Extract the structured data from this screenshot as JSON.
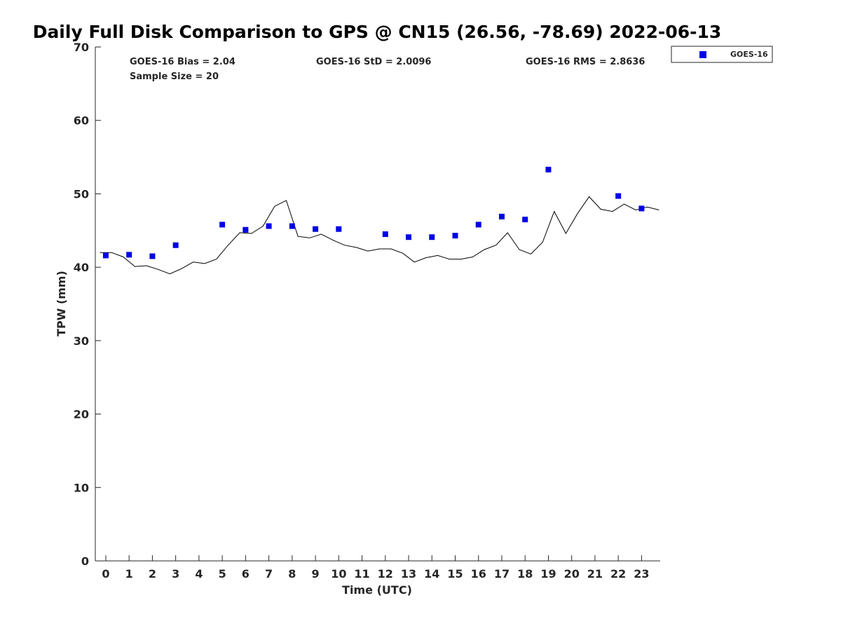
{
  "chart_data": {
    "type": "scatter",
    "title": "Daily Full Disk Comparison to GPS @ CN15 (26.56, -78.69) 2022-06-13",
    "xlabel": "Time (UTC)",
    "ylabel": "TPW (mm)",
    "xlim": [
      -0.45,
      23.8
    ],
    "ylim": [
      0,
      70
    ],
    "x_ticks": [
      0,
      1,
      2,
      3,
      4,
      5,
      6,
      7,
      8,
      9,
      10,
      11,
      12,
      13,
      14,
      15,
      16,
      17,
      18,
      19,
      20,
      21,
      22,
      23
    ],
    "y_ticks": [
      0,
      10,
      20,
      30,
      40,
      50,
      60,
      70
    ],
    "x_tick_labels": [
      "0",
      "1",
      "2",
      "3",
      "4",
      "5",
      "6",
      "7",
      "8",
      "9",
      "10",
      "11",
      "12",
      "13",
      "14",
      "15",
      "16",
      "17",
      "18",
      "19",
      "20",
      "21",
      "22",
      "23"
    ],
    "y_tick_labels": [
      "0",
      "10",
      "20",
      "30",
      "40",
      "50",
      "60",
      "70"
    ],
    "grid": false,
    "legend_position": "top-right-outside",
    "stats": {
      "bias": "GOES-16 Bias = 2.04",
      "sample_size": "Sample Size = 20",
      "std": "GOES-16 StD = 2.0096",
      "rms": "GOES-16 RMS = 2.8636"
    },
    "series": [
      {
        "name": "GOES-16",
        "kind": "scatter",
        "marker": "square",
        "color": "#0000e6",
        "x": [
          0,
          1,
          2,
          3,
          5,
          6,
          7,
          8,
          9,
          10,
          12,
          13,
          14,
          15,
          16,
          17,
          18,
          19,
          22,
          23
        ],
        "y": [
          41.6,
          41.7,
          41.5,
          43.0,
          45.8,
          45.1,
          45.6,
          45.6,
          45.2,
          45.2,
          44.5,
          44.1,
          44.1,
          44.3,
          45.8,
          46.9,
          46.5,
          53.3,
          49.7,
          48.0
        ]
      },
      {
        "kind": "line",
        "color": "#000000",
        "x": [
          -0.25,
          0.25,
          0.75,
          1.25,
          1.75,
          2.25,
          2.75,
          3.25,
          3.75,
          4.25,
          4.75,
          5.25,
          5.75,
          6.25,
          6.75,
          7.25,
          7.75,
          8.25,
          8.75,
          9.25,
          9.75,
          10.25,
          10.75,
          11.25,
          11.75,
          12.25,
          12.75,
          13.25,
          13.75,
          14.25,
          14.75,
          15.25,
          15.75,
          16.25,
          16.75,
          17.25,
          17.75,
          18.25,
          18.75,
          19.25,
          19.75,
          20.25,
          20.75,
          21.25,
          21.75,
          22.25,
          22.75,
          23.25,
          23.75
        ],
        "y": [
          42.0,
          42.0,
          41.4,
          40.1,
          40.2,
          39.7,
          39.1,
          39.8,
          40.7,
          40.5,
          41.1,
          43.0,
          44.7,
          44.6,
          45.6,
          48.3,
          49.1,
          44.2,
          44.0,
          44.5,
          43.7,
          43.0,
          42.7,
          42.2,
          42.5,
          42.5,
          41.9,
          40.7,
          41.3,
          41.6,
          41.1,
          41.1,
          41.4,
          42.4,
          43.0,
          44.7,
          42.4,
          41.8,
          43.4,
          47.6,
          44.6,
          47.3,
          49.6,
          47.9,
          47.6,
          48.6,
          47.8,
          48.2,
          47.8
        ]
      }
    ]
  }
}
